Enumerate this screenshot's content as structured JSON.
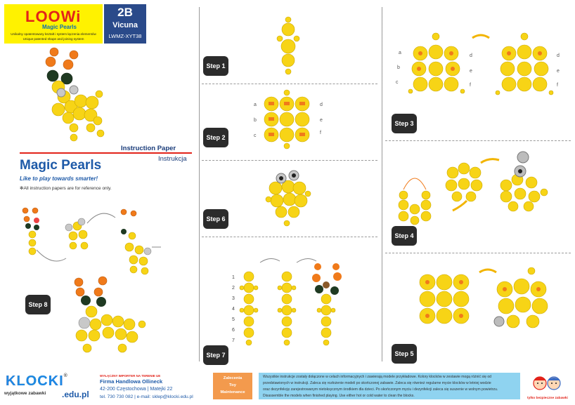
{
  "header": {
    "brand": "LOOWi",
    "product_line": "Magic Pearls",
    "brand_desc_pl": "Unikalny opatentowany kształt i system łączenia elementów",
    "brand_desc_en": "Unique patented shape and joining system",
    "set_number": "2B",
    "set_name": "Vicuna",
    "set_code": "LWMZ-XYT38"
  },
  "intro": {
    "instruction_en": "Instruction Paper",
    "instruction_pl": "Instrukcja",
    "title": "Magic Pearls",
    "tagline": "Like to play towards smarter!",
    "note": "✻All instruction papers are for reference only."
  },
  "steps": {
    "s1": "Step 1",
    "s2": "Step 2",
    "s3": "Step 3",
    "s4": "Step 4",
    "s5": "Step 5",
    "s6": "Step 6",
    "s7": "Step 7",
    "s8": "Step 8"
  },
  "letters": {
    "a": "a",
    "b": "b",
    "c": "c",
    "d": "d",
    "e": "e",
    "f": "f"
  },
  "step7_numbers": [
    "1",
    "2",
    "3",
    "4",
    "5",
    "6",
    "7"
  ],
  "footer": {
    "klocki": "KLOCKI",
    "klocki_reg": "®",
    "klocki_sub": "wyjątkowe zabawki",
    "klocki_domain": ".edu.pl",
    "importer_label": "WYŁĄCZNY IMPORTER NA TERENIE UE",
    "company": "Firma Handlowa Ollineck",
    "address": "42-200 Częstochowa | Matejki 22",
    "contact": "tel. 730 730 082 | e-mail: sklep@klocki.edu.pl",
    "maint_line1": "Zalecenia",
    "maint_line2": "Toy",
    "maint_line3": "Maintenance",
    "maint_text_1": "Wszystkie instrukcje zostały dołączone w celach informacyjnych i zawierają modele przykładowe. Kolory klocków w zestawie mogą różnić się od",
    "maint_text_2": "przedstawionych w instrukcji. Zaleca się rozłożenie modeli po skończonej zabawie. Zaleca się również regularne mycie klocków w letniej wodzie",
    "maint_text_3": "oraz dezynfekcję zarejestrowanym nietoksycznym środkiem dla dzieci. Po skończonym myciu i dezynfekcji zaleca się suszenie w wolnym powietrzu.",
    "maint_text_4": "Disassemble the models when finished playing. Use either hot or cold water to clean the blocks.",
    "safe_label": "tylko bezpieczne zabawki"
  },
  "colors": {
    "yellow": "#f7d416",
    "orange": "#f07a1a",
    "dark_green": "#1f3a22",
    "grey": "#b5b5b5",
    "navy": "#2a4a8a",
    "red": "#e2231a"
  }
}
